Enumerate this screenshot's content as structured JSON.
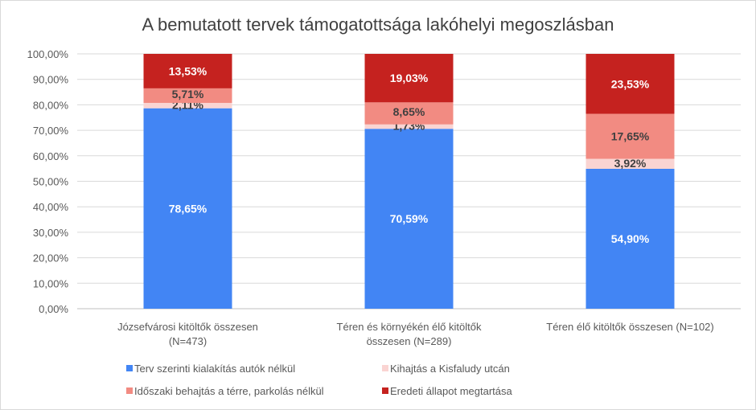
{
  "chart_data": {
    "type": "bar",
    "stacked": true,
    "title": "A bemutatott tervek támogatottsága lakóhelyi megoszlásban",
    "xlabel": "",
    "ylabel": "",
    "ylim": [
      0,
      100
    ],
    "y_ticks": [
      "0,00%",
      "10,00%",
      "20,00%",
      "30,00%",
      "40,00%",
      "50,00%",
      "60,00%",
      "70,00%",
      "80,00%",
      "90,00%",
      "100,00%"
    ],
    "categories": [
      [
        "Józsefvárosi kitöltők összesen",
        "(N=473)"
      ],
      [
        "Téren és környékén élő kitöltők",
        "összesen  (N=289)"
      ],
      [
        "Téren élő kitöltők összesen (N=102)"
      ]
    ],
    "series": [
      {
        "name": "Terv szerinti kialakítás autók nélkül",
        "color": "#4285F4",
        "label_color": "#ffffff",
        "values": [
          78.65,
          70.59,
          54.9
        ],
        "labels": [
          "78,65%",
          "70,59%",
          "54,90%"
        ]
      },
      {
        "name": "Kihajtás a Kisfaludy utcán",
        "color": "#FAD4D2",
        "label_color": "#404040",
        "values": [
          2.11,
          1.73,
          3.92
        ],
        "labels": [
          "2,11%",
          "1,73%",
          "3,92%"
        ]
      },
      {
        "name": "Időszaki behajtás a térre, parkolás nélkül",
        "color": "#F28B82",
        "label_color": "#404040",
        "values": [
          5.71,
          8.65,
          17.65
        ],
        "labels": [
          "5,71%",
          "8,65%",
          "17,65%"
        ]
      },
      {
        "name": "Eredeti állapot megtartása",
        "color": "#C5221F",
        "label_color": "#ffffff",
        "values": [
          13.53,
          19.03,
          23.53
        ],
        "labels": [
          "13,53%",
          "19,03%",
          "23,53%"
        ]
      }
    ],
    "grid": true,
    "legend_position": "bottom"
  }
}
